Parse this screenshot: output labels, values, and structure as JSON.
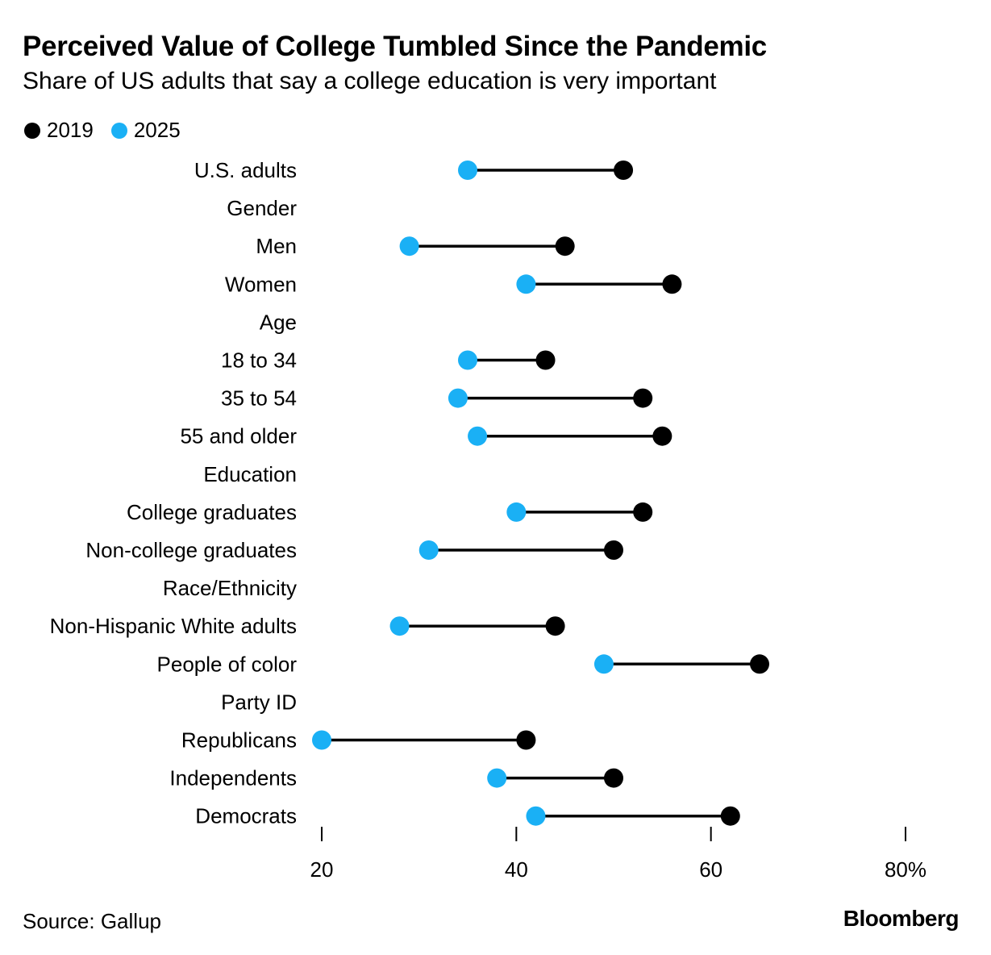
{
  "title": "Perceived Value of College Tumbled Since the Pandemic",
  "subtitle": "Share of US adults that say a college education is very important",
  "source": "Source: Gallup",
  "brand": "Bloomberg",
  "colors": {
    "series_2019": "#000000",
    "series_2025": "#1ab0f5",
    "connector": "#000000"
  },
  "chart_data": {
    "type": "dumbbell",
    "title": "Perceived Value of College Tumbled Since the Pandemic",
    "subtitle": "Share of US adults that say a college education is very important",
    "xlim": [
      20,
      80
    ],
    "x_ticks": [
      20,
      40,
      60,
      80
    ],
    "x_tick_labels": [
      "20",
      "40",
      "60",
      "80%"
    ],
    "grid": false,
    "legend_position": "top-left",
    "series": [
      {
        "name": "2019",
        "color": "#000000"
      },
      {
        "name": "2025",
        "color": "#1ab0f5"
      }
    ],
    "rows": [
      {
        "label": "U.S. adults",
        "header": false,
        "v2019": 51,
        "v2025": 35
      },
      {
        "label": "Gender",
        "header": true
      },
      {
        "label": "Men",
        "header": false,
        "v2019": 45,
        "v2025": 29
      },
      {
        "label": "Women",
        "header": false,
        "v2019": 56,
        "v2025": 41
      },
      {
        "label": "Age",
        "header": true
      },
      {
        "label": "18 to 34",
        "header": false,
        "v2019": 43,
        "v2025": 35
      },
      {
        "label": "35 to 54",
        "header": false,
        "v2019": 53,
        "v2025": 34
      },
      {
        "label": "55 and older",
        "header": false,
        "v2019": 55,
        "v2025": 36
      },
      {
        "label": "Education",
        "header": true
      },
      {
        "label": "College graduates",
        "header": false,
        "v2019": 53,
        "v2025": 40
      },
      {
        "label": "Non-college graduates",
        "header": false,
        "v2019": 50,
        "v2025": 31
      },
      {
        "label": "Race/Ethnicity",
        "header": true
      },
      {
        "label": "Non-Hispanic White adults",
        "header": false,
        "v2019": 44,
        "v2025": 28
      },
      {
        "label": "People of color",
        "header": false,
        "v2019": 65,
        "v2025": 49
      },
      {
        "label": "Party ID",
        "header": true
      },
      {
        "label": "Republicans",
        "header": false,
        "v2019": 41,
        "v2025": 20
      },
      {
        "label": "Independents",
        "header": false,
        "v2019": 50,
        "v2025": 38
      },
      {
        "label": "Democrats",
        "header": false,
        "v2019": 62,
        "v2025": 42
      }
    ]
  }
}
